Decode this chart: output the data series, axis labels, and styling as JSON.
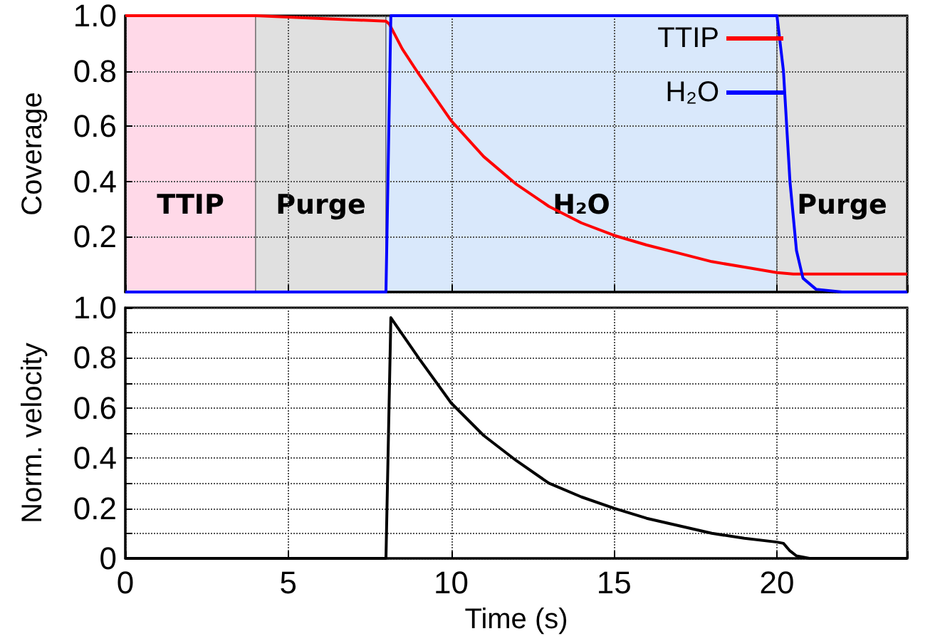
{
  "chart_data": [
    {
      "type": "line",
      "ylabel": "Coverage",
      "xlim": [
        0,
        24
      ],
      "xticks": [
        0,
        5,
        10,
        15,
        20
      ],
      "ylim": [
        0,
        1
      ],
      "yticks": [
        0.2,
        0.4,
        0.6,
        0.8,
        "1.0"
      ],
      "tick_labels": "y",
      "grid": true,
      "legend": "top right",
      "marker": "none",
      "line_style": "solid",
      "bands": [
        {
          "axis": "x",
          "from": 0,
          "to": 4,
          "label": "TTIP",
          "color": "#ffd9e8"
        },
        {
          "axis": "x",
          "from": 4,
          "to": 8,
          "label": "Purge",
          "color": "#e0e0e0"
        },
        {
          "axis": "x",
          "from": 8,
          "to": 20,
          "label": "H₂O",
          "color": "#d9e8fb"
        },
        {
          "axis": "x",
          "from": 20,
          "to": 24,
          "label": "Purge",
          "color": "#e0e0e0"
        }
      ],
      "series": [
        {
          "name": "TTIP",
          "color": "#ff0000",
          "x": [
            0,
            4,
            6,
            8,
            8.1,
            8.5,
            9,
            10,
            11,
            12,
            13,
            14,
            15,
            16,
            17,
            18,
            19,
            20,
            20.5,
            24
          ],
          "values": [
            1,
            1,
            0.99,
            0.98,
            0.97,
            0.88,
            0.79,
            0.62,
            0.49,
            0.39,
            0.31,
            0.25,
            0.205,
            0.17,
            0.14,
            0.11,
            0.09,
            0.07,
            0.065,
            0.065
          ]
        },
        {
          "name": "H₂O",
          "color": "#0000ff",
          "x": [
            0,
            8,
            8.15,
            20,
            20.2,
            20.4,
            20.6,
            20.8,
            21.2,
            22,
            24
          ],
          "values": [
            0,
            0,
            1,
            1,
            0.8,
            0.4,
            0.15,
            0.05,
            0.01,
            0,
            0
          ]
        }
      ]
    },
    {
      "type": "line",
      "xlabel": "Time (s)",
      "ylabel": "Norm. velocity",
      "xlim": [
        0,
        24
      ],
      "xticks": [
        0,
        5,
        10,
        15,
        20
      ],
      "ylim": [
        0,
        1
      ],
      "yticks": [
        0,
        {
          "value": 0.1,
          "label": null
        },
        0.2,
        {
          "value": 0.3,
          "label": null
        },
        0.4,
        {
          "value": 0.5,
          "label": null
        },
        0.6,
        {
          "value": 0.7,
          "label": null
        },
        0.8,
        {
          "value": 0.9,
          "label": null
        },
        {
          "value": 1,
          "label": "1.0"
        }
      ],
      "grid": true,
      "marker": "none",
      "line_style": "solid",
      "series": [
        {
          "color": "#000000",
          "x": [
            0,
            8,
            8.15,
            9,
            10,
            11,
            12,
            13,
            14,
            15,
            16,
            17,
            18,
            19,
            20,
            20.2,
            20.4,
            20.6,
            21,
            24
          ],
          "values": [
            0,
            0,
            0.96,
            0.8,
            0.62,
            0.49,
            0.39,
            0.3,
            0.245,
            0.2,
            0.16,
            0.13,
            0.1,
            0.08,
            0.065,
            0.06,
            0.03,
            0.01,
            0,
            0
          ]
        }
      ]
    }
  ]
}
